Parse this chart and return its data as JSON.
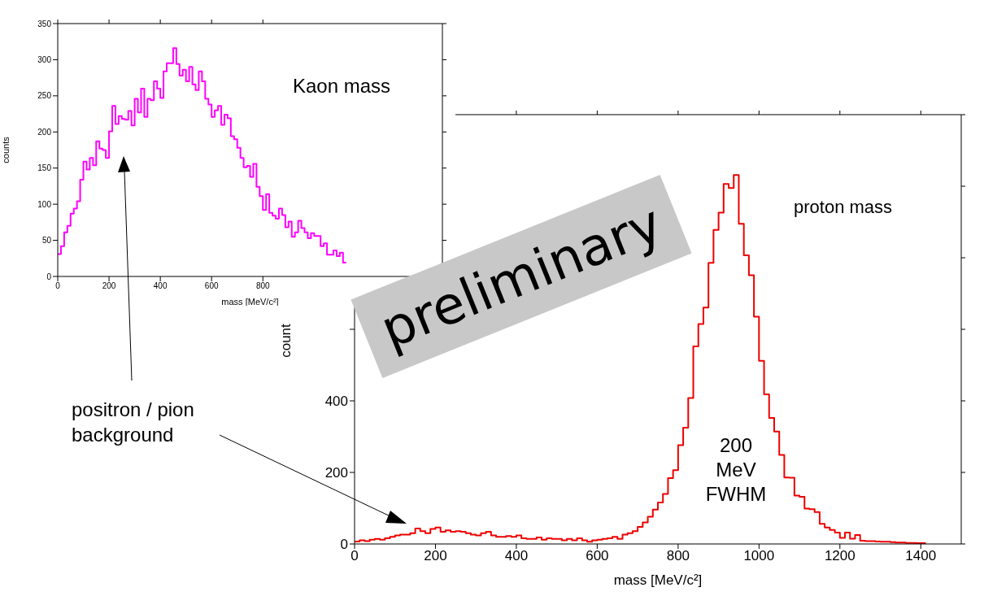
{
  "chart_data": [
    {
      "type": "histogram",
      "title": "Kaon mass",
      "xlabel": "mass [MeV/c²]",
      "ylabel": "counts",
      "color": "#ff00ff",
      "bins": [
        0,
        12.5,
        25,
        37.5,
        50,
        62.5,
        75,
        87.5,
        100,
        112.5,
        125,
        137.5,
        150,
        162.5,
        175,
        187.5,
        200,
        212.5,
        225,
        237.5,
        250,
        262.5,
        275,
        287.5,
        300,
        312.5,
        325,
        337.5,
        350,
        362.5,
        375,
        387.5,
        400,
        412.5,
        425,
        437.5,
        450,
        462.5,
        475,
        487.5,
        500,
        512.5,
        525,
        537.5,
        550,
        562.5,
        575,
        587.5,
        600,
        612.5,
        625,
        637.5,
        650,
        662.5,
        675,
        687.5,
        700,
        712.5,
        725,
        737.5,
        750,
        762.5,
        775,
        787.5,
        800,
        812.5,
        825,
        837.5,
        850,
        862.5,
        875,
        887.5,
        900,
        912.5,
        925,
        937.5,
        950,
        962.5,
        975,
        987.5,
        1000,
        1012.5,
        1025,
        1037.5,
        1050,
        1062.5,
        1075,
        1087.5,
        1100,
        1112.5,
        1125
      ],
      "values": [
        31,
        42,
        61,
        70,
        87,
        94,
        104,
        134,
        159,
        148,
        164,
        154,
        187,
        177,
        175,
        164,
        201,
        236,
        211,
        222,
        218,
        217,
        229,
        209,
        246,
        227,
        260,
        221,
        246,
        244,
        270,
        260,
        247,
        284,
        295,
        295,
        316,
        294,
        278,
        286,
        270,
        290,
        266,
        258,
        284,
        270,
        246,
        238,
        221,
        230,
        236,
        210,
        224,
        219,
        194,
        190,
        178,
        164,
        151,
        153,
        138,
        156,
        124,
        111,
        92,
        114,
        88,
        84,
        80,
        94,
        85,
        68,
        76,
        55,
        61,
        77,
        67,
        61,
        53,
        60,
        56,
        56,
        42,
        46,
        30,
        30,
        36,
        28,
        33,
        19
      ],
      "xlim": [
        0,
        1500
      ],
      "xticks": [
        0,
        200,
        400,
        600,
        800
      ],
      "ylim": [
        0,
        350
      ],
      "yticks": [
        0,
        50,
        100,
        150,
        200,
        250,
        300,
        350
      ]
    },
    {
      "type": "histogram",
      "title": "proton mass",
      "xlabel": "mass [MeV/c²]",
      "ylabel": "count",
      "color": "#ee0000",
      "bins": [
        0,
        12.5,
        25,
        37.5,
        50,
        62.5,
        75,
        87.5,
        100,
        112.5,
        125,
        137.5,
        150,
        162.5,
        175,
        187.5,
        200,
        212.5,
        225,
        237.5,
        250,
        262.5,
        275,
        287.5,
        300,
        312.5,
        325,
        337.5,
        350,
        362.5,
        375,
        387.5,
        400,
        412.5,
        425,
        437.5,
        450,
        462.5,
        475,
        487.5,
        500,
        512.5,
        525,
        537.5,
        550,
        562.5,
        575,
        587.5,
        600,
        612.5,
        625,
        637.5,
        650,
        662.5,
        675,
        687.5,
        700,
        712.5,
        725,
        737.5,
        750,
        762.5,
        775,
        787.5,
        800,
        812.5,
        825,
        837.5,
        850,
        862.5,
        875,
        887.5,
        900,
        912.5,
        925,
        937.5,
        950,
        962.5,
        975,
        987.5,
        1000,
        1012.5,
        1025,
        1037.5,
        1050,
        1062.5,
        1075,
        1087.5,
        1100,
        1112.5,
        1125,
        1137.5,
        1150,
        1162.5,
        1175,
        1187.5,
        1200,
        1212.5,
        1225,
        1237.5,
        1250,
        1262.5,
        1275,
        1287.5,
        1300,
        1312.5,
        1325,
        1337.5,
        1350,
        1362.5,
        1375,
        1387.5,
        1400,
        1412.5
      ],
      "values": [
        7,
        10,
        8,
        12,
        14,
        12,
        16,
        20,
        24,
        26,
        26,
        30,
        43,
        36,
        30,
        42,
        46,
        34,
        38,
        34,
        36,
        34,
        30,
        26,
        24,
        30,
        34,
        24,
        20,
        20,
        22,
        20,
        24,
        16,
        14,
        14,
        18,
        12,
        16,
        14,
        14,
        10,
        14,
        10,
        16,
        10,
        6,
        10,
        12,
        14,
        16,
        20,
        14,
        26,
        30,
        36,
        48,
        60,
        76,
        96,
        116,
        140,
        184,
        206,
        276,
        325,
        408,
        552,
        615,
        661,
        786,
        878,
        926,
        1006,
        995,
        1031,
        895,
        807,
        751,
        635,
        512,
        418,
        352,
        314,
        249,
        186,
        185,
        135,
        132,
        99,
        97,
        89,
        56,
        46,
        39,
        32,
        17,
        32,
        15,
        25,
        9,
        8,
        8,
        7,
        6,
        6,
        5,
        4,
        4,
        3,
        3,
        2,
        2
      ],
      "xlim": [
        0,
        1500
      ],
      "xticks": [
        0,
        200,
        400,
        600,
        800,
        1000,
        1200,
        1400
      ],
      "ylim": [
        0,
        1200
      ],
      "yticks": [
        0,
        200,
        400,
        {
          "value": 600,
          "label": null
        },
        {
          "value": 800,
          "label": null
        },
        {
          "value": 1000,
          "label": null
        },
        {
          "value": 1200,
          "label": null
        }
      ],
      "annotations": [
        "200 MeV FWHM",
        "positron / pion background",
        "preliminary"
      ]
    }
  ]
}
